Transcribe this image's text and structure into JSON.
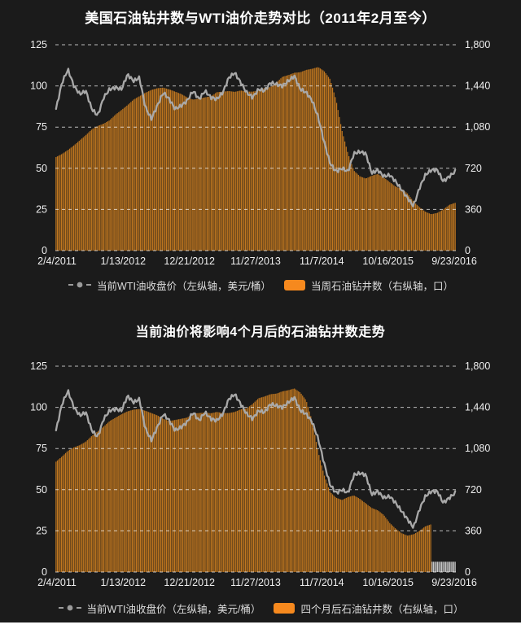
{
  "page": {
    "background": "#1B1B1B",
    "outside_background": "#FFFFFF",
    "axis_text_color": "#EFEFEF",
    "title_color": "#FFFFFF"
  },
  "charts": [
    {
      "legend": {
        "line_label": "当前WTI油收盘价（左纵轴，美元/桶）",
        "bar_label": "当周石油钻井数（右纵轴，口）",
        "marker_color": "#9B9B9B",
        "swatch_color": "#F6891E"
      }
    },
    {
      "legend": {
        "line_label": "当前WTI油收盘价（左纵轴，美元/桶）",
        "bar_label": "四个月后石油钻井数（右纵轴，口）",
        "marker_color": "#9B9B9B",
        "swatch_color": "#F6891E"
      }
    }
  ],
  "chart_data": [
    {
      "type": "bar+line",
      "title": "美国石油钻井数与WTI油价走势对比（2011年2月至今）",
      "x_tick_labels": [
        "2/4/2011",
        "1/13/2012",
        "12/21/2012",
        "11/27/2013",
        "11/7/2014",
        "10/16/2015",
        "9/23/2016"
      ],
      "x_range": [
        "2011-02",
        "2016-09"
      ],
      "left_axis": {
        "ticks": [
          125,
          100,
          75,
          50,
          25,
          0
        ],
        "range": [
          0,
          125
        ]
      },
      "right_axis": {
        "ticks": [
          "1,800",
          "1,440",
          "1,080",
          "720",
          "360",
          "0"
        ],
        "range": [
          0,
          1800
        ]
      },
      "grid_style": {
        "color": "rgba(255,255,255,0.7)",
        "dash": "4 4"
      },
      "legend_position": "bottom",
      "series": [
        {
          "name": "当前WTI油收盘价",
          "type": "line",
          "axis": "left",
          "color": "#A9A9A9",
          "sampling": "monthly",
          "values": [
            86,
            102,
            110,
            100,
            95,
            97,
            86,
            82,
            93,
            98,
            99,
            98,
            107,
            103,
            105,
            87,
            80,
            88,
            96,
            92,
            86,
            88,
            91,
            97,
            92,
            97,
            93,
            92,
            96,
            105,
            108,
            102,
            96,
            93,
            98,
            97,
            102,
            101,
            100,
            103,
            106,
            98,
            96,
            91,
            81,
            66,
            53,
            48,
            50,
            48,
            59,
            60,
            59,
            47,
            49,
            45,
            46,
            42,
            37,
            32,
            27,
            38,
            46,
            49,
            49,
            42,
            45,
            48
          ]
        },
        {
          "name": "当周石油钻井数",
          "type": "bar",
          "axis": "right",
          "color": "#C1771F",
          "sampling": "monthly",
          "values": [
            818,
            845,
            880,
            920,
            965,
            1010,
            1060,
            1090,
            1110,
            1140,
            1190,
            1230,
            1272,
            1320,
            1350,
            1380,
            1405,
            1420,
            1425,
            1410,
            1390,
            1370,
            1340,
            1320,
            1330,
            1340,
            1350,
            1385,
            1390,
            1395,
            1388,
            1400,
            1390,
            1390,
            1400,
            1422,
            1430,
            1470,
            1520,
            1535,
            1555,
            1560,
            1580,
            1590,
            1605,
            1570,
            1500,
            1320,
            1050,
            850,
            700,
            650,
            630,
            655,
            670,
            640,
            600,
            560,
            540,
            500,
            430,
            380,
            340,
            318,
            330,
            360,
            400,
            418
          ]
        }
      ]
    },
    {
      "type": "bar+line",
      "title": "当前油价将影响4个月后的石油钻井数走势",
      "x_tick_labels": [
        "2/4/2011",
        "1/13/2012",
        "12/21/2012",
        "11/27/2013",
        "11/7/2014",
        "10/16/2015",
        "9/23/2016"
      ],
      "x_range": [
        "2011-02",
        "2016-09"
      ],
      "left_axis": {
        "ticks": [
          125,
          100,
          75,
          50,
          25,
          0
        ],
        "range": [
          0,
          125
        ]
      },
      "right_axis": {
        "ticks": [
          "1,800",
          "1,440",
          "1,080",
          "720",
          "360",
          "0"
        ],
        "range": [
          0,
          1800
        ]
      },
      "grid_style": {
        "color": "rgba(255,255,255,0.7)",
        "dash": "4 4"
      },
      "legend_position": "bottom",
      "no_data_marker": {
        "months": 4,
        "height": 90,
        "color": "#C8C8C8"
      },
      "series": [
        {
          "name": "当前WTI油收盘价",
          "type": "line",
          "axis": "left",
          "color": "#A9A9A9",
          "sampling": "monthly",
          "values": [
            86,
            102,
            110,
            100,
            95,
            97,
            86,
            82,
            93,
            98,
            99,
            98,
            107,
            103,
            105,
            87,
            80,
            88,
            96,
            92,
            86,
            88,
            91,
            97,
            92,
            97,
            93,
            92,
            96,
            105,
            108,
            102,
            96,
            93,
            98,
            97,
            102,
            101,
            100,
            103,
            106,
            98,
            96,
            91,
            81,
            66,
            53,
            48,
            50,
            48,
            59,
            60,
            59,
            47,
            49,
            45,
            46,
            42,
            37,
            32,
            27,
            38,
            46,
            49,
            49,
            42,
            45,
            48
          ]
        },
        {
          "name": "四个月后石油钻井数",
          "type": "bar",
          "axis": "right",
          "color": "#C1771F",
          "sampling": "monthly",
          "values": [
            965,
            1010,
            1060,
            1090,
            1110,
            1140,
            1190,
            1230,
            1272,
            1320,
            1350,
            1380,
            1405,
            1420,
            1425,
            1410,
            1390,
            1370,
            1340,
            1320,
            1330,
            1340,
            1350,
            1385,
            1390,
            1395,
            1388,
            1400,
            1390,
            1390,
            1400,
            1422,
            1430,
            1470,
            1520,
            1535,
            1555,
            1560,
            1580,
            1590,
            1605,
            1570,
            1500,
            1320,
            1050,
            850,
            700,
            650,
            630,
            655,
            670,
            640,
            600,
            560,
            540,
            500,
            430,
            380,
            340,
            318,
            330,
            360,
            400,
            418
          ]
        }
      ]
    }
  ]
}
